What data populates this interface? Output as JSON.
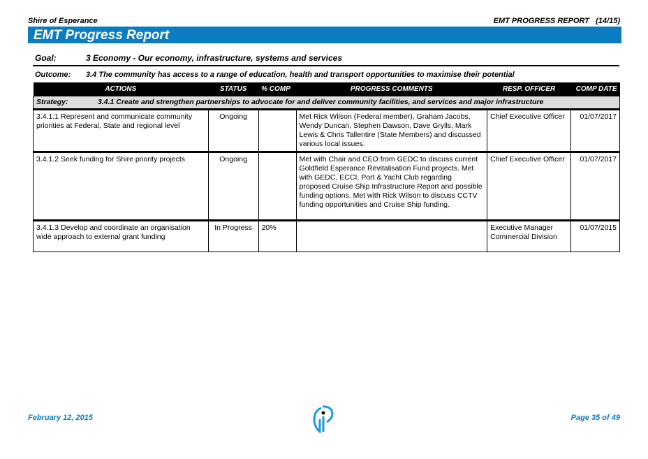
{
  "header": {
    "org": "Shire of Esperance",
    "report": "EMT PROGRESS REPORT",
    "period": "(14/15)",
    "title": "EMT Progress Report"
  },
  "goal": {
    "label": "Goal:",
    "text": "3  Economy - Our economy, infrastructure, systems and services"
  },
  "outcome": {
    "label": "Outcome:",
    "text": "3.4  The community has access to a range of education, health and transport opportunities to maximise their potential"
  },
  "table": {
    "columns": [
      "ACTIONS",
      "STATUS",
      "% COMP",
      "PROGRESS COMMENTS",
      "RESP. OFFICER",
      "COMP DATE"
    ],
    "strategy": {
      "label": "Strategy:",
      "text": "3.4.1  Create and strengthen partnerships to advocate for and deliver community facilities, and services and major infrastructure"
    },
    "rows": [
      {
        "action": "3.4.1.1  Represent  and communicate community priorities at Federal, State and regional level",
        "status": "Ongoing",
        "comp": "",
        "comments": "Met Rick Wilson (Federal member), Graham Jacobs, Wendy Duncan, Stephen Dawson, Dave Grylls, Mark Lewis & Chris Tallentire (State Members) and discussed various local issues.",
        "officer": "Chief Executive Officer",
        "date": "01/07/2017"
      },
      {
        "action": "3.4.1.2  Seek funding for Shire priority projects",
        "status": "Ongoing",
        "comp": "",
        "comments": "Met with Chair and CEO from GEDC to discuss current Goldfield Esperance Revitalisation Fund projects.  Met with GEDC, ECCI, Port & Yacht Club regarding proposed Cruise Ship Infrastructure Report and possible funding options.  Met with Rick Wilson to discuss CCTV funding opportunities and Cruise Ship funding.",
        "officer": "Chief Executive Officer",
        "date": "01/07/2017"
      },
      {
        "action": "3.4.1.3  Develop and coordinate an organisation wide approach to external grant funding",
        "status": "In Progress",
        "comp": "20%",
        "comments": "",
        "officer": "Executive Manager Commercial Division",
        "date": "01/07/2015"
      }
    ]
  },
  "footer": {
    "date": "February 12, 2015",
    "page": "Page 35 of 49",
    "logo_icon": "info-i-logo"
  },
  "colors": {
    "brand": "#0a7dc2"
  }
}
